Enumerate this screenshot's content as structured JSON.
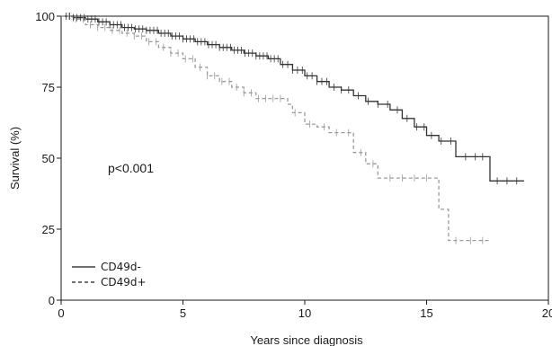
{
  "chart_data": {
    "type": "line",
    "subtype": "kaplan-meier",
    "title": "",
    "xlabel": "Years since diagnosis",
    "ylabel": "Survival (%)",
    "xlim": [
      0,
      20
    ],
    "ylim": [
      0,
      100
    ],
    "x_ticks": [
      0,
      5,
      10,
      15,
      20
    ],
    "y_ticks": [
      0,
      25,
      50,
      75,
      100
    ],
    "x_tick_labels": [
      "0",
      "5",
      "10",
      "15",
      "20"
    ],
    "y_tick_labels": [
      "0",
      "25",
      "50",
      "75",
      "100"
    ],
    "grid": false,
    "legend_position": "bottom-left",
    "annotation": "p<0.001",
    "series": [
      {
        "name": "CD49d-",
        "style": "solid",
        "color": "#333333",
        "points": [
          [
            0,
            100
          ],
          [
            0.5,
            99.5
          ],
          [
            1,
            99
          ],
          [
            1.5,
            98
          ],
          [
            2,
            97
          ],
          [
            2.5,
            96
          ],
          [
            3,
            95.5
          ],
          [
            3.5,
            95
          ],
          [
            4,
            94
          ],
          [
            4.5,
            93
          ],
          [
            5,
            92
          ],
          [
            5.5,
            91
          ],
          [
            6,
            90
          ],
          [
            6.5,
            89
          ],
          [
            7,
            88
          ],
          [
            7.5,
            87
          ],
          [
            8,
            86
          ],
          [
            8.5,
            85
          ],
          [
            9,
            83
          ],
          [
            9.5,
            81
          ],
          [
            10,
            79
          ],
          [
            10.5,
            77
          ],
          [
            11,
            75
          ],
          [
            11.5,
            74
          ],
          [
            12,
            72
          ],
          [
            12.5,
            70
          ],
          [
            13,
            69
          ],
          [
            13.5,
            67
          ],
          [
            14,
            64
          ],
          [
            14.5,
            61
          ],
          [
            15,
            58
          ],
          [
            15.5,
            56
          ],
          [
            16.2,
            50.5
          ],
          [
            17.6,
            50.5
          ],
          [
            17.6,
            42
          ],
          [
            19,
            42
          ]
        ],
        "censor_x": [
          0.2,
          0.35,
          0.5,
          0.65,
          0.8,
          0.95,
          1.1,
          1.25,
          1.4,
          1.55,
          1.7,
          1.85,
          2.0,
          2.15,
          2.3,
          2.45,
          2.6,
          2.75,
          2.9,
          3.05,
          3.2,
          3.35,
          3.5,
          3.65,
          3.8,
          3.95,
          4.1,
          4.25,
          4.4,
          4.55,
          4.7,
          4.85,
          5.0,
          5.15,
          5.3,
          5.45,
          5.6,
          5.75,
          5.9,
          6.05,
          6.2,
          6.35,
          6.5,
          6.65,
          6.8,
          6.95,
          7.1,
          7.25,
          7.4,
          7.55,
          7.7,
          7.85,
          8.0,
          8.15,
          8.3,
          8.45,
          8.6,
          8.75,
          8.9,
          9.1,
          9.3,
          9.5,
          9.7,
          9.9,
          10.1,
          10.3,
          10.5,
          10.7,
          10.9,
          11.2,
          11.5,
          11.8,
          12.2,
          12.6,
          13.0,
          13.4,
          13.8,
          14.2,
          14.6,
          14.9,
          15.2,
          15.6,
          16.0,
          16.6,
          17.0,
          17.3,
          17.9,
          18.3,
          18.7
        ]
      },
      {
        "name": "CD49d+",
        "style": "dashed",
        "color": "#9a9a9a",
        "points": [
          [
            0,
            100
          ],
          [
            0.5,
            99
          ],
          [
            1,
            97
          ],
          [
            1.5,
            96
          ],
          [
            2,
            95
          ],
          [
            2.5,
            94
          ],
          [
            3,
            93
          ],
          [
            3.5,
            91
          ],
          [
            4,
            89
          ],
          [
            4.5,
            87
          ],
          [
            5,
            85
          ],
          [
            5.5,
            82
          ],
          [
            6,
            79
          ],
          [
            6.5,
            77
          ],
          [
            7,
            75
          ],
          [
            7.5,
            73
          ],
          [
            8,
            71
          ],
          [
            9,
            71
          ],
          [
            9.3,
            69
          ],
          [
            9.5,
            66
          ],
          [
            10,
            62
          ],
          [
            10.5,
            61
          ],
          [
            11,
            59
          ],
          [
            11.5,
            59
          ],
          [
            12,
            52
          ],
          [
            12.5,
            48
          ],
          [
            13,
            43
          ],
          [
            15.3,
            43
          ],
          [
            15.5,
            32
          ],
          [
            15.9,
            32
          ],
          [
            15.9,
            21
          ],
          [
            17.6,
            21
          ]
        ],
        "censor_x": [
          0.3,
          0.6,
          0.9,
          1.2,
          1.5,
          1.8,
          2.1,
          2.4,
          2.7,
          3.0,
          3.3,
          3.6,
          3.9,
          4.2,
          4.5,
          4.8,
          5.1,
          5.4,
          5.7,
          6.0,
          6.3,
          6.6,
          6.9,
          7.2,
          7.5,
          7.8,
          8.1,
          8.4,
          8.7,
          9.0,
          9.6,
          10.2,
          10.8,
          11.3,
          11.8,
          12.3,
          12.8,
          13.5,
          14.0,
          14.5,
          15.0,
          16.2,
          16.8,
          17.3
        ]
      }
    ]
  }
}
